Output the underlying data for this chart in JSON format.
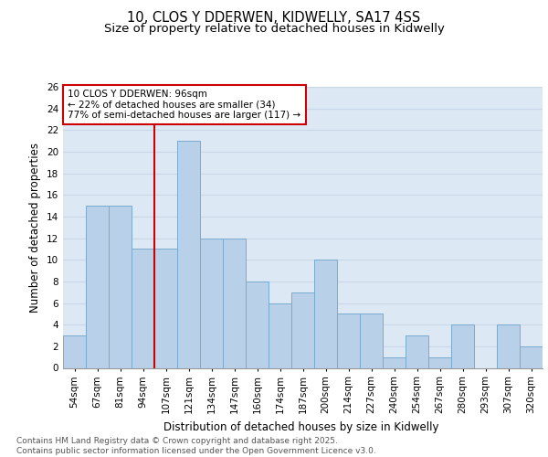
{
  "title1": "10, CLOS Y DDERWEN, KIDWELLY, SA17 4SS",
  "title2": "Size of property relative to detached houses in Kidwelly",
  "xlabel": "Distribution of detached houses by size in Kidwelly",
  "ylabel": "Number of detached properties",
  "categories": [
    "54sqm",
    "67sqm",
    "81sqm",
    "94sqm",
    "107sqm",
    "121sqm",
    "134sqm",
    "147sqm",
    "160sqm",
    "174sqm",
    "187sqm",
    "200sqm",
    "214sqm",
    "227sqm",
    "240sqm",
    "254sqm",
    "267sqm",
    "280sqm",
    "293sqm",
    "307sqm",
    "320sqm"
  ],
  "values": [
    3,
    15,
    15,
    11,
    11,
    21,
    12,
    12,
    8,
    6,
    7,
    10,
    5,
    5,
    1,
    3,
    1,
    4,
    0,
    4,
    2
  ],
  "bar_color": "#b8d0e8",
  "bar_edgecolor": "#7aaad0",
  "bar_linewidth": 0.7,
  "vline_x_idx": 3.5,
  "vline_color": "#cc0000",
  "annotation_text": "10 CLOS Y DDERWEN: 96sqm\n← 22% of detached houses are smaller (34)\n77% of semi-detached houses are larger (117) →",
  "annotation_box_color": "#cc0000",
  "ylim": [
    0,
    26
  ],
  "yticks": [
    0,
    2,
    4,
    6,
    8,
    10,
    12,
    14,
    16,
    18,
    20,
    22,
    24,
    26
  ],
  "grid_color": "#c8d8e8",
  "background_color": "#dce8f4",
  "footnote": "Contains HM Land Registry data © Crown copyright and database right 2025.\nContains public sector information licensed under the Open Government Licence v3.0.",
  "title_fontsize": 10.5,
  "subtitle_fontsize": 9.5,
  "axis_label_fontsize": 8.5,
  "tick_fontsize": 7.5,
  "annotation_fontsize": 7.5,
  "footnote_fontsize": 6.5
}
